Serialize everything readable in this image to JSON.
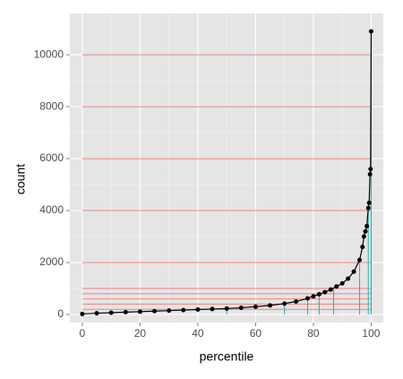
{
  "chart_data": {
    "type": "scatter",
    "xlabel": "percentile",
    "ylabel": "count",
    "x": [
      0,
      5,
      10,
      15,
      20,
      25,
      30,
      35,
      40,
      45,
      50,
      55,
      60,
      65,
      70,
      74,
      78,
      80,
      82,
      84,
      86,
      88,
      90,
      92,
      94,
      96,
      97,
      97.5,
      98,
      98.5,
      99,
      99.3,
      99.6,
      99.8,
      100
    ],
    "values": [
      20,
      50,
      70,
      90,
      110,
      130,
      150,
      170,
      190,
      210,
      230,
      260,
      300,
      350,
      420,
      500,
      620,
      700,
      780,
      860,
      960,
      1080,
      1200,
      1380,
      1650,
      2100,
      2600,
      3000,
      3200,
      3400,
      4100,
      4300,
      5400,
      5600,
      10900
    ],
    "color": "#000000",
    "hlines": [
      200,
      400,
      600,
      800,
      1000,
      2000,
      4000,
      6000,
      8000,
      10000
    ],
    "hline_color": "#f08080",
    "vlines": {
      "x": [
        50,
        70,
        78,
        82,
        87,
        96,
        99,
        100,
        100,
        100
      ],
      "y": [
        200,
        400,
        600,
        800,
        1000,
        2000,
        4000,
        6000,
        8000,
        10000
      ]
    },
    "vline_color": "#20b2b2",
    "xlim": [
      -4.3,
      104.2
    ],
    "ylim": [
      -310,
      11590
    ],
    "xticks": [
      0,
      20,
      40,
      60,
      80,
      100
    ],
    "yticks": [
      0,
      2000,
      4000,
      6000,
      8000,
      10000
    ],
    "grid": true
  }
}
